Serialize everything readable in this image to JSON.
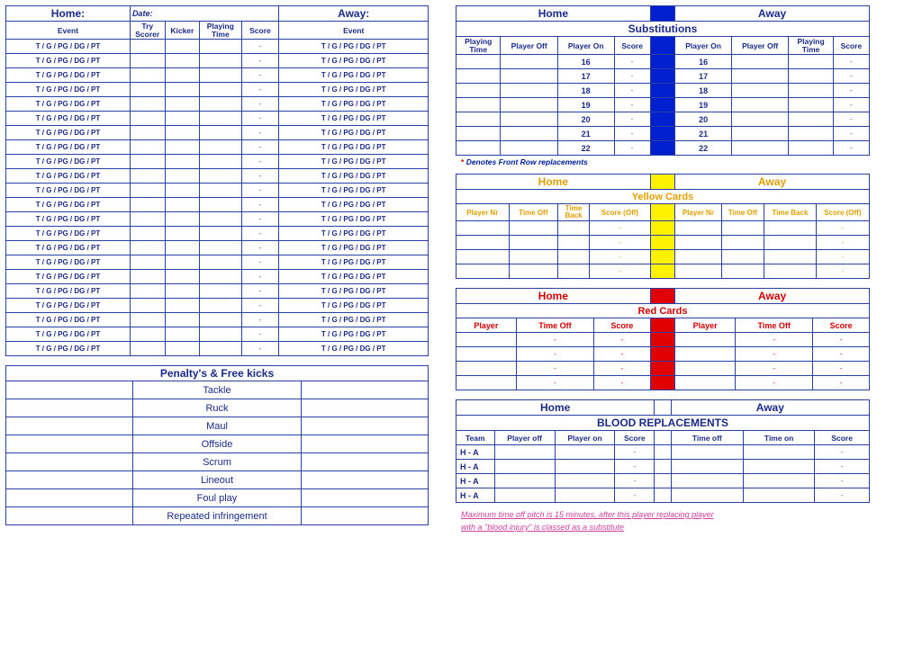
{
  "labels": {
    "home": "Home",
    "homeColon": "Home:",
    "away": "Away",
    "awayColon": "Away:",
    "date": "Date:",
    "event": "Event",
    "tryScorer": "Try Scorer",
    "kicker": "Kicker",
    "playingTime": "Playing Time",
    "score": "Score",
    "dash": "-"
  },
  "scoring": {
    "eventCode": "T / G / PG / DG / PT",
    "rows": 22,
    "cols": [
      "event",
      "tryScorer",
      "kicker",
      "playingTime",
      "score",
      "event2"
    ]
  },
  "penalties": {
    "title": "Penalty's & Free kicks",
    "rows": [
      "Tackle",
      "Ruck",
      "Maul",
      "Offside",
      "Scrum",
      "Lineout",
      "Foul play",
      "Repeated infringement"
    ]
  },
  "subs": {
    "title": "Substitutions",
    "headers": [
      "Playing Time",
      "Player Off",
      "Player On",
      "Score"
    ],
    "numbers": [
      16,
      17,
      18,
      19,
      20,
      21,
      22
    ],
    "note": "Denotes Front Row replacements"
  },
  "yellow": {
    "title": "Yellow Cards",
    "headers": [
      "Player Nr",
      "Time Off",
      "Time Back",
      "Score (Off)"
    ],
    "rows": 4
  },
  "red": {
    "title": "Red Cards",
    "headers": [
      "Player",
      "Time Off",
      "Score"
    ],
    "rows": 4
  },
  "blood": {
    "title": "BLOOD REPLACEMENTS",
    "headers": [
      "Team",
      "Player off",
      "Player on",
      "Score",
      "",
      "Time off",
      "Time on",
      "Score"
    ],
    "rowLabel": "H   -   A",
    "rows": 4,
    "noteLine1": "Maximum time off pitch is 15 minutes, after this player replacing player",
    "noteLine2": "with a \"blood injury\" is classed as a substitute"
  },
  "colors": {
    "border": "#2a3f9f",
    "blue": "#0020d0",
    "yellow": "#fff200",
    "red": "#e00000",
    "yc": "#e0a000",
    "rc": "#d00000",
    "pink": "#d040a0"
  }
}
